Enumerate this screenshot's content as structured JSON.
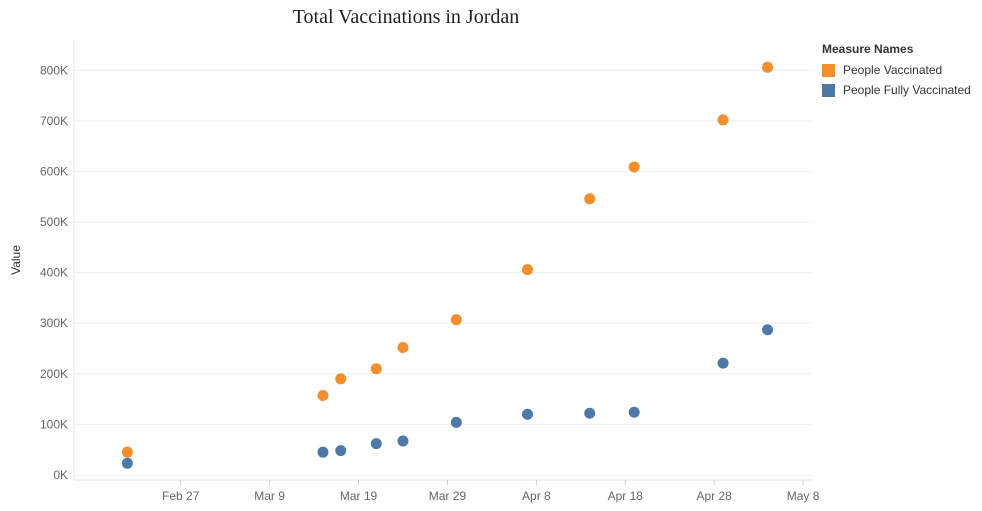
{
  "chart_data": {
    "type": "scatter",
    "title": "Total Vaccinations in Jordan",
    "ylabel": "Value",
    "xlabel": "",
    "ylim": [
      -10000,
      860000
    ],
    "y_ticks": [
      0,
      100000,
      200000,
      300000,
      400000,
      500000,
      600000,
      700000,
      800000
    ],
    "y_tick_labels": [
      "0K",
      "100K",
      "200K",
      "300K",
      "400K",
      "500K",
      "600K",
      "700K",
      "800K"
    ],
    "x_tick_labels": [
      "Feb 27",
      "Mar 9",
      "Mar 19",
      "Mar 29",
      "Apr 8",
      "Apr 18",
      "Apr 28",
      "May 8"
    ],
    "x_tick_dates": [
      "2021-02-27",
      "2021-03-09",
      "2021-03-19",
      "2021-03-29",
      "2021-04-08",
      "2021-04-18",
      "2021-04-28",
      "2021-05-08"
    ],
    "xlim": [
      "2021-02-15",
      "2021-05-09"
    ],
    "grid": true,
    "legend_title": "Measure Names",
    "legend_position": "right",
    "series": [
      {
        "name": "People Vaccinated",
        "color": "#f28e2b",
        "points": [
          {
            "x": "2021-02-21",
            "y": 45000
          },
          {
            "x": "2021-03-15",
            "y": 157000
          },
          {
            "x": "2021-03-17",
            "y": 190000
          },
          {
            "x": "2021-03-21",
            "y": 210000
          },
          {
            "x": "2021-03-24",
            "y": 252000
          },
          {
            "x": "2021-03-30",
            "y": 307000
          },
          {
            "x": "2021-04-07",
            "y": 406000
          },
          {
            "x": "2021-04-14",
            "y": 546000
          },
          {
            "x": "2021-04-19",
            "y": 609000
          },
          {
            "x": "2021-04-29",
            "y": 702000
          },
          {
            "x": "2021-05-04",
            "y": 806000
          }
        ]
      },
      {
        "name": "People Fully Vaccinated",
        "color": "#4e79a7",
        "points": [
          {
            "x": "2021-02-21",
            "y": 23000
          },
          {
            "x": "2021-03-15",
            "y": 45000
          },
          {
            "x": "2021-03-17",
            "y": 48000
          },
          {
            "x": "2021-03-21",
            "y": 62000
          },
          {
            "x": "2021-03-24",
            "y": 67000
          },
          {
            "x": "2021-03-30",
            "y": 104000
          },
          {
            "x": "2021-04-07",
            "y": 120000
          },
          {
            "x": "2021-04-14",
            "y": 122000
          },
          {
            "x": "2021-04-19",
            "y": 124000
          },
          {
            "x": "2021-04-29",
            "y": 221000
          },
          {
            "x": "2021-05-04",
            "y": 287000
          }
        ]
      }
    ]
  }
}
